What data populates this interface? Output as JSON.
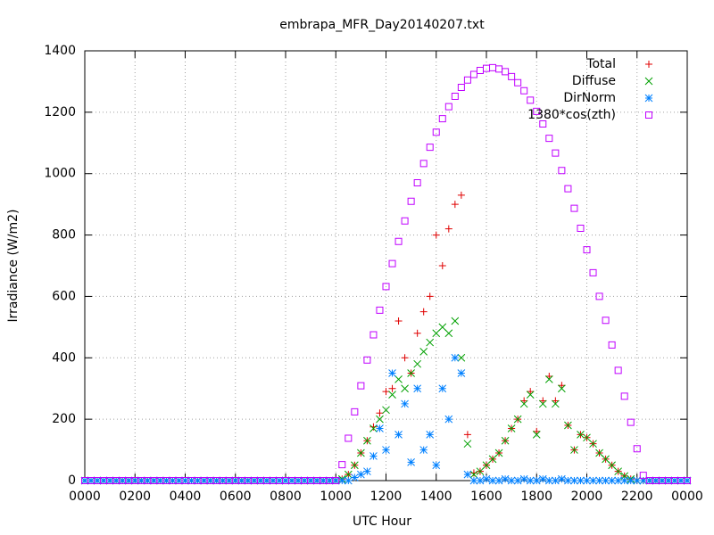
{
  "chart_data": {
    "type": "scatter",
    "title": "embrapa_MFR_Day20140207.txt",
    "xlabel": "UTC Hour",
    "ylabel": "Irradiance (W/m2)",
    "xlim": [
      0,
      24
    ],
    "ylim": [
      0,
      1400
    ],
    "xticks": [
      {
        "value": 0,
        "label": "0000"
      },
      {
        "value": 2,
        "label": "0200"
      },
      {
        "value": 4,
        "label": "0400"
      },
      {
        "value": 6,
        "label": "0600"
      },
      {
        "value": 8,
        "label": "0800"
      },
      {
        "value": 10,
        "label": "1000"
      },
      {
        "value": 12,
        "label": "1200"
      },
      {
        "value": 14,
        "label": "1400"
      },
      {
        "value": 16,
        "label": "1600"
      },
      {
        "value": 18,
        "label": "1800"
      },
      {
        "value": 20,
        "label": "2000"
      },
      {
        "value": 22,
        "label": "2200"
      },
      {
        "value": 24,
        "label": "0000"
      }
    ],
    "yticks": [
      0,
      200,
      400,
      600,
      800,
      1000,
      1200,
      1400
    ],
    "grid": true,
    "legend": "top-right",
    "x": [
      0,
      0.25,
      0.5,
      0.75,
      1,
      1.25,
      1.5,
      1.75,
      2,
      2.25,
      2.5,
      2.75,
      3,
      3.25,
      3.5,
      3.75,
      4,
      4.25,
      4.5,
      4.75,
      5,
      5.25,
      5.5,
      5.75,
      6,
      6.25,
      6.5,
      6.75,
      7,
      7.25,
      7.5,
      7.75,
      8,
      8.25,
      8.5,
      8.75,
      9,
      9.25,
      9.5,
      9.75,
      10,
      10.25,
      10.5,
      10.75,
      11,
      11.25,
      11.5,
      11.75,
      12,
      12.25,
      12.5,
      12.75,
      13,
      13.25,
      13.5,
      13.75,
      14,
      14.25,
      14.5,
      14.75,
      15,
      15.25,
      15.5,
      15.75,
      16,
      16.25,
      16.5,
      16.75,
      17,
      17.25,
      17.5,
      17.75,
      18,
      18.25,
      18.5,
      18.75,
      19,
      19.25,
      19.5,
      19.75,
      20,
      20.25,
      20.5,
      20.75,
      21,
      21.25,
      21.5,
      21.75,
      22,
      22.25,
      22.5,
      22.75,
      23,
      23.25,
      23.5,
      23.75,
      24
    ],
    "series": [
      {
        "name": "Total",
        "color": "#e00000",
        "marker": "plus",
        "values": [
          0,
          0,
          0,
          0,
          0,
          0,
          0,
          0,
          0,
          0,
          0,
          0,
          0,
          0,
          0,
          0,
          0,
          0,
          0,
          0,
          0,
          0,
          0,
          0,
          0,
          0,
          0,
          0,
          0,
          0,
          0,
          0,
          0,
          0,
          0,
          0,
          0,
          0,
          0,
          0,
          0,
          5,
          20,
          50,
          90,
          130,
          175,
          220,
          290,
          300,
          520,
          400,
          350,
          480,
          550,
          600,
          800,
          700,
          820,
          900,
          930,
          150,
          25,
          30,
          50,
          70,
          90,
          130,
          170,
          200,
          260,
          290,
          160,
          260,
          340,
          260,
          310,
          180,
          100,
          150,
          140,
          120,
          90,
          70,
          50,
          30,
          15,
          5,
          0,
          0,
          0,
          0,
          0,
          0,
          0,
          0,
          0
        ]
      },
      {
        "name": "Diffuse",
        "color": "#00a000",
        "marker": "cross",
        "values": [
          0,
          0,
          0,
          0,
          0,
          0,
          0,
          0,
          0,
          0,
          0,
          0,
          0,
          0,
          0,
          0,
          0,
          0,
          0,
          0,
          0,
          0,
          0,
          0,
          0,
          0,
          0,
          0,
          0,
          0,
          0,
          0,
          0,
          0,
          0,
          0,
          0,
          0,
          0,
          0,
          0,
          5,
          20,
          50,
          90,
          130,
          170,
          200,
          230,
          280,
          330,
          300,
          350,
          380,
          420,
          450,
          480,
          500,
          480,
          520,
          400,
          120,
          20,
          30,
          50,
          70,
          90,
          130,
          170,
          200,
          250,
          280,
          150,
          250,
          330,
          250,
          300,
          180,
          100,
          150,
          140,
          120,
          90,
          70,
          50,
          30,
          15,
          5,
          0,
          0,
          0,
          0,
          0,
          0,
          0,
          0,
          0
        ]
      },
      {
        "name": "DirNorm",
        "color": "#0080ff",
        "marker": "star",
        "values": [
          0,
          0,
          0,
          0,
          0,
          0,
          0,
          0,
          0,
          0,
          0,
          0,
          0,
          0,
          0,
          0,
          0,
          0,
          0,
          0,
          0,
          0,
          0,
          0,
          0,
          0,
          0,
          0,
          0,
          0,
          0,
          0,
          0,
          0,
          0,
          0,
          0,
          0,
          0,
          0,
          0,
          0,
          0,
          10,
          20,
          30,
          80,
          170,
          100,
          350,
          150,
          250,
          60,
          300,
          100,
          150,
          50,
          300,
          200,
          400,
          350,
          20,
          0,
          0,
          5,
          0,
          0,
          5,
          0,
          0,
          5,
          0,
          0,
          5,
          0,
          0,
          5,
          0,
          0,
          0,
          0,
          0,
          0,
          0,
          0,
          0,
          0,
          0,
          0,
          0,
          0,
          0,
          0,
          0,
          0,
          0,
          0
        ]
      },
      {
        "name": "1380*cos(zth)",
        "color": "#c000ff",
        "marker": "square",
        "values": [
          0,
          0,
          0,
          0,
          0,
          0,
          0,
          0,
          0,
          0,
          0,
          0,
          0,
          0,
          0,
          0,
          0,
          0,
          0,
          0,
          0,
          0,
          0,
          0,
          0,
          0,
          0,
          0,
          0,
          0,
          0,
          0,
          0,
          0,
          0,
          0,
          0,
          0,
          0,
          0,
          0,
          52,
          138,
          224,
          309,
          393,
          475,
          555,
          632,
          707,
          779,
          846,
          910,
          970,
          1033,
          1086,
          1135,
          1179,
          1218,
          1252,
          1281,
          1305,
          1323,
          1336,
          1343,
          1345,
          1341,
          1332,
          1316,
          1296,
          1270,
          1239,
          1203,
          1162,
          1115,
          1067,
          1010,
          951,
          887,
          822,
          752,
          677,
          600,
          522,
          442,
          359,
          275,
          190,
          104,
          17,
          0,
          0,
          0,
          0,
          0,
          0,
          0
        ]
      }
    ]
  }
}
